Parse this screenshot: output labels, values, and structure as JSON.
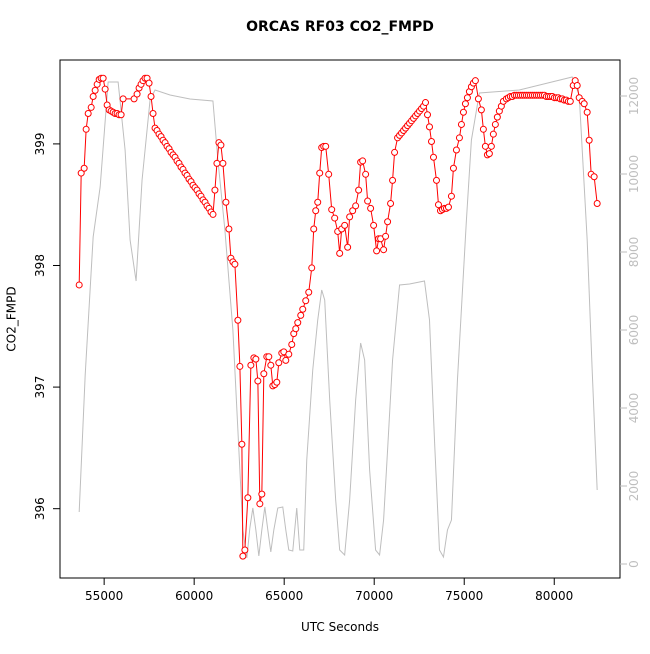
{
  "chart_data": {
    "type": "line",
    "title": "ORCAS RF03 CO2_FMPD",
    "x_label": "UTC Seconds",
    "y_label": "CO2_FMPD",
    "xlim": [
      52548,
      83652
    ],
    "xticks": [
      55000,
      60000,
      65000,
      70000,
      75000,
      80000
    ],
    "ylim": [
      395.43,
      399.69
    ],
    "yticks": [
      396,
      397,
      398,
      399
    ],
    "y2lim": [
      -359,
      12923
    ],
    "y2ticks": [
      0,
      2000,
      4000,
      6000,
      8000,
      10000,
      12000
    ],
    "series": [
      {
        "color": "#ff0000",
        "x": [
          53614,
          53725,
          53890,
          54000,
          54113,
          54280,
          54390,
          54500,
          54612,
          54723,
          54834,
          54945,
          55055,
          55166,
          55277,
          55388,
          55500,
          55610,
          55720,
          55830,
          55943,
          56053,
          56663,
          56830,
          56940,
          57050,
          57160,
          57273,
          57384,
          57494,
          57605,
          57716,
          57827,
          57938,
          58049,
          58160,
          58271,
          58382,
          58493,
          58604,
          58715,
          58826,
          58937,
          59048,
          59159,
          59270,
          59381,
          59492,
          59603,
          59714,
          59825,
          59936,
          60047,
          60158,
          60269,
          60380,
          60491,
          60602,
          60713,
          60824,
          60935,
          61046,
          61153,
          61264,
          61375,
          61486,
          61597,
          61763,
          61929,
          62040,
          62151,
          62262,
          62428,
          62539,
          62650,
          62705,
          62816,
          62982,
          63149,
          63315,
          63426,
          63537,
          63648,
          63758,
          63869,
          64035,
          64146,
          64257,
          64368,
          64479,
          64590,
          64701,
          64867,
          64978,
          65089,
          65255,
          65421,
          65532,
          65643,
          65754,
          65920,
          66031,
          66197,
          66364,
          66530,
          66641,
          66752,
          66863,
          66973,
          67084,
          67195,
          67306,
          67472,
          67639,
          67805,
          67971,
          68082,
          68193,
          68359,
          68525,
          68636,
          68803,
          68969,
          69135,
          69246,
          69357,
          69523,
          69634,
          69800,
          69967,
          70133,
          70244,
          70355,
          70521,
          70632,
          70743,
          70909,
          71020,
          71131,
          71297,
          71408,
          71519,
          71630,
          71741,
          71852,
          71963,
          72074,
          72185,
          72296,
          72407,
          72518,
          72629,
          72740,
          72849,
          72960,
          73071,
          73182,
          73293,
          73459,
          73570,
          73681,
          73792,
          73902,
          74013,
          74124,
          74290,
          74401,
          74567,
          74734,
          74845,
          74956,
          75067,
          75177,
          75288,
          75399,
          75510,
          75621,
          75787,
          75953,
          76064,
          76175,
          76286,
          76397,
          76508,
          76618,
          76729,
          76840,
          76951,
          77062,
          77173,
          77340,
          77451,
          77562,
          77673,
          77784,
          77895,
          78006,
          78117,
          78228,
          78339,
          78450,
          78561,
          78672,
          78783,
          78894,
          79005,
          79116,
          79227,
          79338,
          79449,
          79560,
          79671,
          79782,
          79893,
          80004,
          80115,
          80226,
          80337,
          80448,
          80559,
          80670,
          80781,
          80892,
          81053,
          81164,
          81275,
          81386,
          81552,
          81663,
          81829,
          81940,
          82051,
          82217,
          82384
        ],
        "values": [
          397.84,
          398.76,
          398.8,
          399.12,
          399.25,
          399.3,
          399.39,
          399.44,
          399.49,
          399.53,
          399.54,
          399.54,
          399.45,
          399.32,
          399.28,
          399.27,
          399.26,
          399.25,
          399.25,
          399.24,
          399.24,
          399.37,
          399.37,
          399.41,
          399.46,
          399.49,
          399.52,
          399.54,
          399.54,
          399.5,
          399.39,
          399.25,
          399.13,
          399.11,
          399.08,
          399.06,
          399.03,
          399.01,
          398.98,
          398.96,
          398.93,
          398.91,
          398.89,
          398.86,
          398.84,
          398.81,
          398.79,
          398.76,
          398.74,
          398.71,
          398.69,
          398.66,
          398.64,
          398.62,
          398.59,
          398.57,
          398.54,
          398.52,
          398.49,
          398.47,
          398.44,
          398.42,
          398.62,
          398.84,
          399.01,
          398.99,
          398.84,
          398.52,
          398.3,
          398.06,
          398.03,
          398.01,
          397.55,
          397.17,
          396.53,
          395.61,
          395.66,
          396.09,
          397.18,
          397.24,
          397.23,
          397.05,
          396.04,
          396.12,
          397.11,
          397.25,
          397.25,
          397.18,
          397.01,
          397.02,
          397.04,
          397.2,
          397.28,
          397.29,
          397.22,
          397.27,
          397.35,
          397.44,
          397.48,
          397.53,
          397.59,
          397.64,
          397.71,
          397.78,
          397.98,
          398.3,
          398.45,
          398.52,
          398.76,
          398.97,
          398.98,
          398.98,
          398.75,
          398.46,
          398.39,
          398.28,
          398.1,
          398.3,
          398.33,
          398.15,
          398.4,
          398.45,
          398.49,
          398.62,
          398.85,
          398.86,
          398.75,
          398.53,
          398.47,
          398.33,
          398.12,
          398.22,
          398.22,
          398.13,
          398.24,
          398.36,
          398.51,
          398.7,
          398.93,
          399.05,
          399.07,
          399.09,
          399.11,
          399.13,
          399.15,
          399.17,
          399.19,
          399.21,
          399.23,
          399.25,
          399.27,
          399.29,
          399.31,
          399.34,
          399.24,
          399.14,
          399.02,
          398.89,
          398.7,
          398.5,
          398.45,
          398.46,
          398.47,
          398.47,
          398.48,
          398.57,
          398.8,
          398.95,
          399.05,
          399.16,
          399.26,
          399.33,
          399.38,
          399.43,
          399.47,
          399.5,
          399.52,
          399.37,
          399.28,
          399.12,
          398.98,
          398.91,
          398.92,
          398.98,
          399.08,
          399.16,
          399.22,
          399.27,
          399.31,
          399.35,
          399.37,
          399.38,
          399.39,
          399.39,
          399.4,
          399.4,
          399.4,
          399.4,
          399.4,
          399.4,
          399.4,
          399.4,
          399.4,
          399.4,
          399.4,
          399.4,
          399.4,
          399.4,
          399.4,
          399.4,
          399.39,
          399.39,
          399.39,
          399.39,
          399.38,
          399.38,
          399.38,
          399.37,
          399.37,
          399.36,
          399.36,
          399.35,
          399.35,
          399.48,
          399.52,
          399.48,
          399.38,
          399.35,
          399.33,
          399.26,
          399.03,
          398.75,
          398.73,
          398.51
        ]
      },
      {
        "color": "#bebebe",
        "axis": "y2",
        "x": [
          53614,
          53947,
          54390,
          54778,
          55222,
          55776,
          56164,
          56441,
          56774,
          57106,
          57550,
          57827,
          58659,
          59767,
          61042,
          61319,
          61707,
          62151,
          62428,
          62705,
          62927,
          63093,
          63259,
          63426,
          63592,
          63758,
          63925,
          64091,
          64257,
          64424,
          64645,
          64922,
          65089,
          65255,
          65476,
          65698,
          65865,
          66086,
          66253,
          66586,
          66863,
          67084,
          67251,
          67528,
          67860,
          68082,
          68359,
          68636,
          68969,
          69246,
          69468,
          69745,
          70078,
          70299,
          70521,
          70743,
          71020,
          71408,
          71962,
          72793,
          73071,
          73348,
          73625,
          73847,
          74068,
          74290,
          74623,
          75122,
          75399,
          75843,
          78060,
          80998,
          81386,
          81829,
          82106,
          82384
        ],
        "values": [
          1333,
          4846,
          8385,
          9667,
          12359,
          12359,
          10615,
          8308,
          7256,
          9846,
          11897,
          12154,
          12026,
          11923,
          11872,
          10359,
          8564,
          6000,
          3436,
          872,
          154,
          923,
          1436,
          872,
          205,
          872,
          1462,
          872,
          308,
          872,
          1436,
          1462,
          872,
          359,
          333,
          1436,
          359,
          359,
          2667,
          4974,
          6256,
          7026,
          6769,
          4205,
          1641,
          359,
          231,
          1641,
          4205,
          5667,
          5231,
          2410,
          359,
          231,
          1128,
          2923,
          5231,
          7154,
          7179,
          7256,
          6256,
          3179,
          359,
          179,
          872,
          1128,
          4718,
          8821,
          10872,
          12077,
          12154,
          12487,
          12026,
          8308,
          4974,
          1897
        ]
      }
    ]
  }
}
